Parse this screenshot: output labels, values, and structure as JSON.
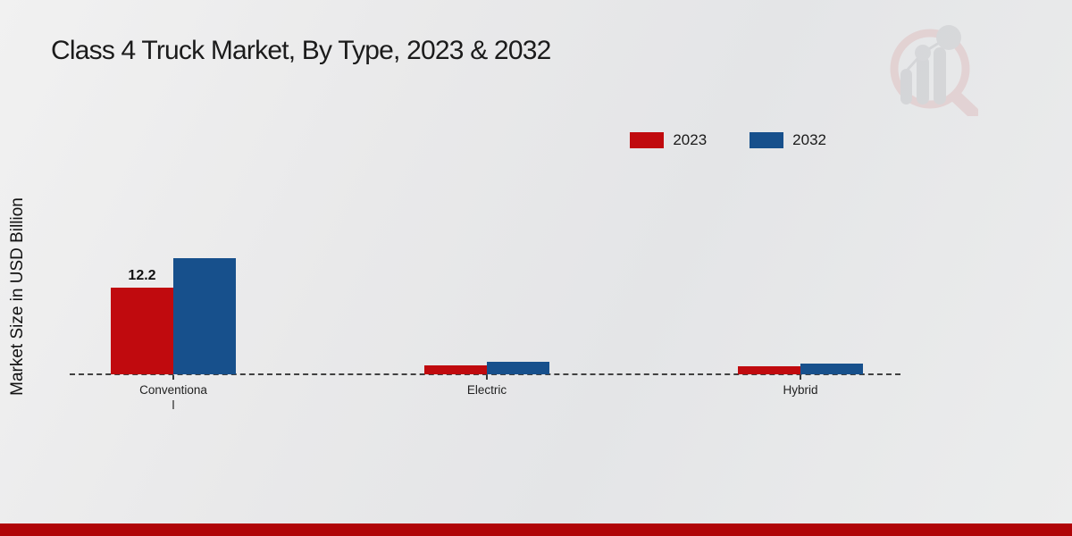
{
  "chart_data": {
    "type": "bar",
    "title": "Class 4 Truck Market, By Type, 2023 & 2032",
    "xlabel": "",
    "ylabel": "Market Size in USD Billion",
    "categories": [
      "Conventional",
      "Electric",
      "Hybrid"
    ],
    "category_label_lines": [
      [
        "Conventiona",
        "l"
      ],
      [
        "Electric"
      ],
      [
        "Hybrid"
      ]
    ],
    "series": [
      {
        "name": "2023",
        "color": "#c00a0e",
        "values": [
          12.2,
          1.2,
          1.1
        ],
        "data_labels": [
          "12.2",
          "",
          ""
        ]
      },
      {
        "name": "2032",
        "color": "#17508c",
        "values": [
          16.3,
          1.7,
          1.5
        ],
        "data_labels": [
          "",
          "",
          ""
        ]
      }
    ],
    "baseline_value": 0,
    "baseline_style": "dashed",
    "grid": false,
    "legend_position": "top-right",
    "data_label_shown": "12.2"
  },
  "colors": {
    "series_2023": "#c00a0e",
    "series_2032": "#17508c",
    "footer_strip": "#b00508",
    "baseline": "#414141",
    "background": "#e9e9ea",
    "title_text": "#1b1b1b"
  },
  "icons": {
    "watermark": "market-research-magnifier-bar-chart-logo"
  }
}
